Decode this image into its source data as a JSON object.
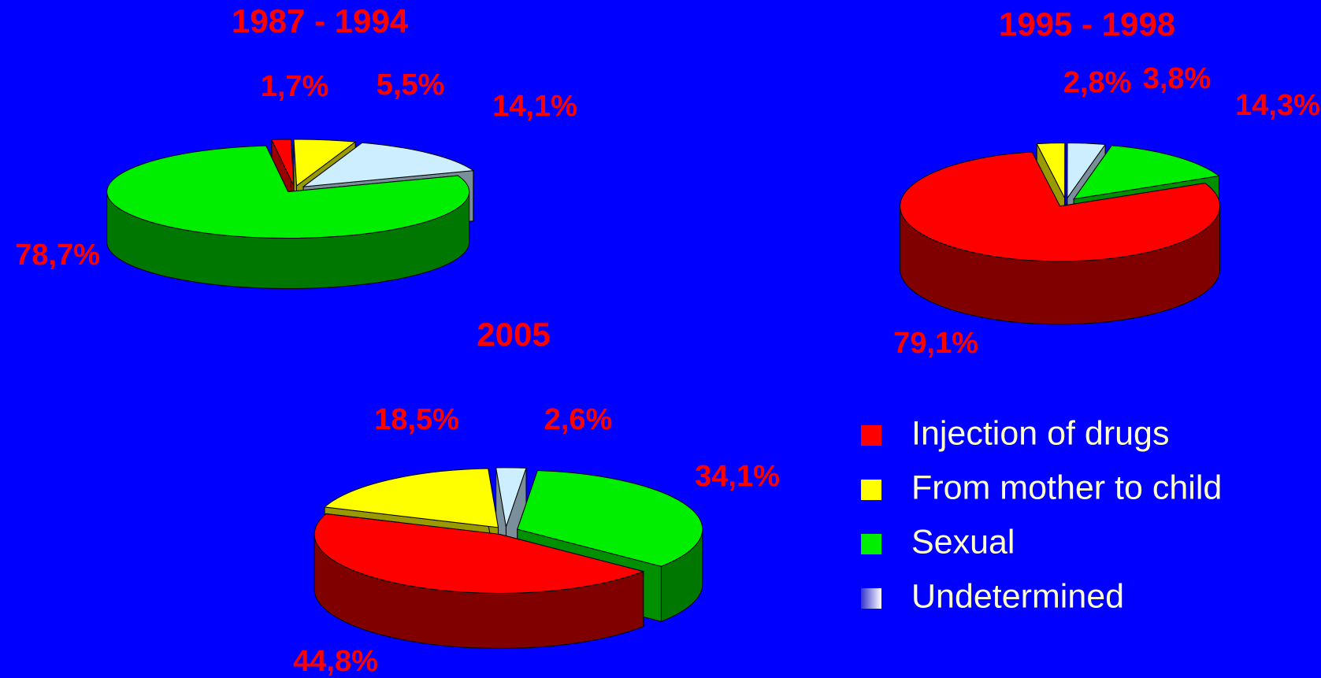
{
  "legend": [
    {
      "name": "Injection of drugs",
      "color": "#ff0000"
    },
    {
      "name": "From mother to child",
      "color": "#ffff00"
    },
    {
      "name": "Sexual",
      "color": "#00ee00"
    },
    {
      "name": "Undetermined",
      "color": "#cceeff"
    }
  ],
  "chart_data": [
    {
      "type": "pie",
      "title": "1987 - 1994",
      "values": [
        1.7,
        5.5,
        78.7,
        14.1
      ],
      "value_labels": [
        "1,7%",
        "5,5%",
        "78,7%",
        "14,1%"
      ]
    },
    {
      "type": "pie",
      "title": "1995 - 1998",
      "values": [
        79.1,
        2.8,
        14.3,
        3.8
      ],
      "value_labels": [
        "79,1%",
        "2,8%",
        "14,3%",
        "3,8%"
      ]
    },
    {
      "type": "pie",
      "title": "2005",
      "values": [
        44.8,
        18.5,
        34.1,
        2.6
      ],
      "value_labels": [
        "44,8%",
        "18,5%",
        "34,1%",
        "2,6%"
      ]
    }
  ]
}
